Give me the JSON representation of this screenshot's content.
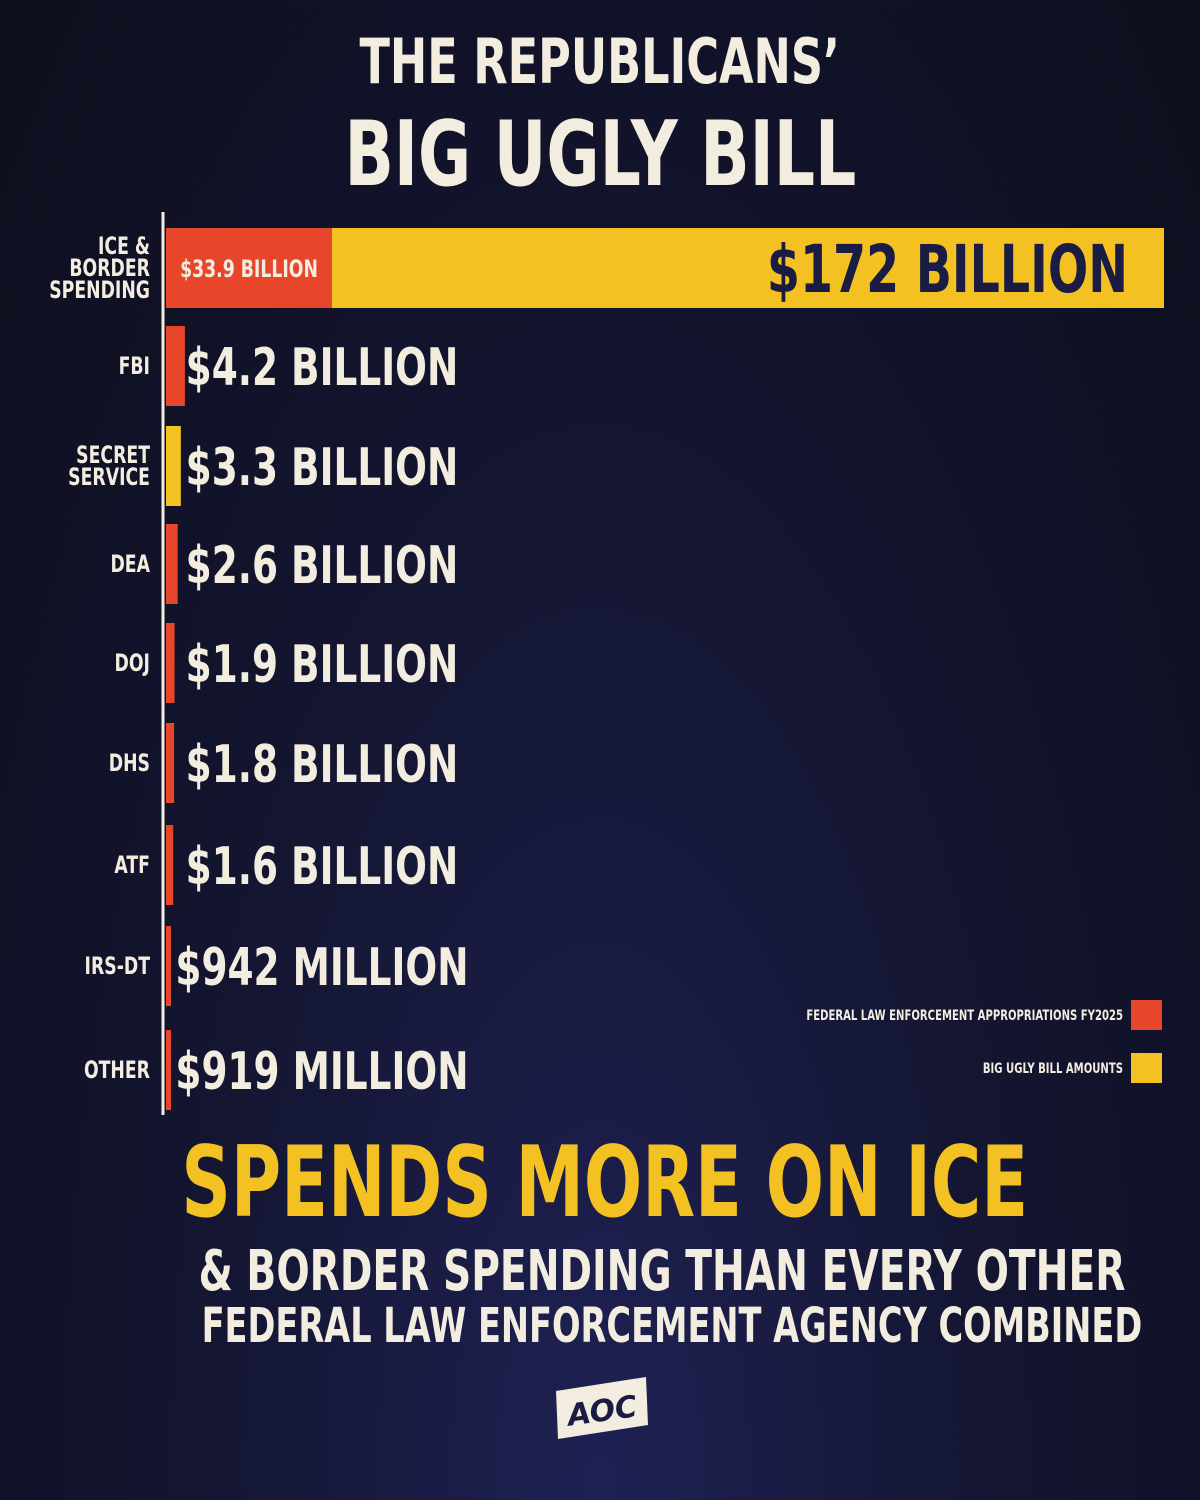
{
  "title": {
    "line1": "THE REPUBLICANS’",
    "line2": "BIG UGLY BILL"
  },
  "chart_data": {
    "type": "bar",
    "orientation": "horizontal",
    "categories": [
      "ICE & BORDER SPENDING",
      "FBI",
      "SECRET SERVICE",
      "DEA",
      "DOJ",
      "DHS",
      "ATF",
      "IRS-DT",
      "OTHER"
    ],
    "category_lines": [
      [
        "ICE &",
        "BORDER",
        "SPENDING"
      ],
      [
        "FBI"
      ],
      [
        "SECRET",
        "SERVICE"
      ],
      [
        "DEA"
      ],
      [
        "DOJ"
      ],
      [
        "DHS"
      ],
      [
        "ATF"
      ],
      [
        "IRS-DT"
      ],
      [
        "OTHER"
      ]
    ],
    "values_billion": [
      172,
      4.2,
      3.3,
      2.6,
      1.9,
      1.8,
      1.6,
      0.942,
      0.919
    ],
    "value_labels": [
      "$172 BILLION",
      "$4.2 BILLION",
      "$3.3 BILLION",
      "$2.6 BILLION",
      "$1.9 BILLION",
      "$1.8 BILLION",
      "$1.6 BILLION",
      "$942 MILLION",
      "$919 MILLION"
    ],
    "bar_colors": [
      "yellow",
      "red",
      "yellow",
      "red",
      "red",
      "red",
      "red",
      "red",
      "red"
    ],
    "inset": {
      "category": "ICE & BORDER SPENDING",
      "value_billion": 33.9,
      "label": "$33.9 BILLION",
      "color": "red"
    },
    "legend": {
      "placement": "bottom-right",
      "entries": [
        {
          "label": "FEDERAL LAW ENFORCEMENT APPROPRIATIONS FY2025",
          "color": "#e8462b"
        },
        {
          "label": "BIG UGLY BILL AMOUNTS",
          "color": "#f4c123"
        }
      ]
    },
    "colors": {
      "red": "#e8462b",
      "yellow": "#f4c123"
    },
    "xlim": [
      0,
      172
    ],
    "grid": false
  },
  "headline": "SPENDS MORE ON ICE",
  "subheadline": {
    "line1": "& BORDER SPENDING THAN EVERY OTHER",
    "line2": "FEDERAL LAW ENFORCEMENT AGENCY COMBINED"
  },
  "logo": {
    "text": "AOC"
  }
}
